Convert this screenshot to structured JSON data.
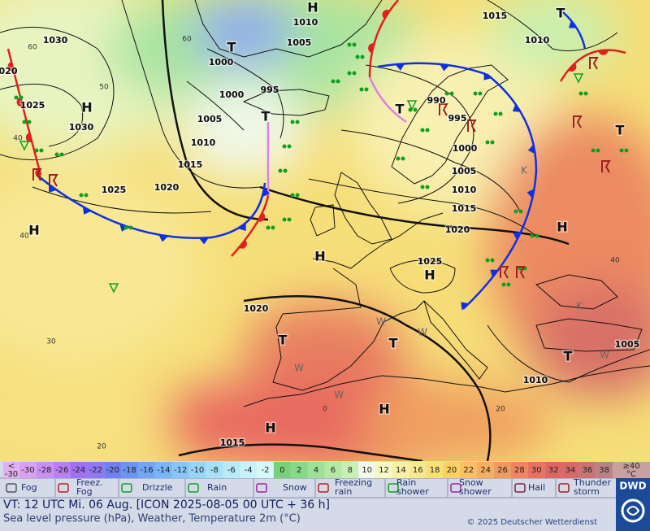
{
  "map": {
    "isobar_labels": [
      "1030",
      "1010",
      "1005",
      "1000",
      "1015",
      "1010",
      "020",
      "1025",
      "1030",
      "1000",
      "995",
      "1005",
      "1010",
      "1015",
      "1025",
      "1020",
      "990",
      "995",
      "1000",
      "1005",
      "1010",
      "1015",
      "1020",
      "1025",
      "1020",
      "1010",
      "1005",
      "1015"
    ],
    "pressure_centers": [
      "H",
      "H",
      "H",
      "H",
      "H",
      "H",
      "H",
      "H",
      "T",
      "T",
      "T",
      "T",
      "T",
      "T",
      "T",
      "T"
    ],
    "temperature_labels": [
      "60",
      "60",
      "50",
      "40",
      "40",
      "30",
      "20",
      "0",
      "20",
      "40"
    ],
    "airmass_labels": [
      "W",
      "W",
      "W",
      "W",
      "K",
      "K",
      "W"
    ]
  },
  "legend": {
    "scale_low": {
      "symbol": "<",
      "value": "-30"
    },
    "scale": [
      {
        "label": "-30",
        "color": "#d8a0f0"
      },
      {
        "label": "-28",
        "color": "#c890f0"
      },
      {
        "label": "-26",
        "color": "#b880f0"
      },
      {
        "label": "-24",
        "color": "#a070f0"
      },
      {
        "label": "-22",
        "color": "#9078f0"
      },
      {
        "label": "-20",
        "color": "#7080f0"
      },
      {
        "label": "-18",
        "color": "#6c94f0"
      },
      {
        "label": "-16",
        "color": "#70a6f4"
      },
      {
        "label": "-14",
        "color": "#78b6f8"
      },
      {
        "label": "-12",
        "color": "#88c6f8"
      },
      {
        "label": "-10",
        "color": "#98d4f8"
      },
      {
        "label": "-8",
        "color": "#a8e0f8"
      },
      {
        "label": "-6",
        "color": "#b8eaf8"
      },
      {
        "label": "-4",
        "color": "#c8f2f8"
      },
      {
        "label": "-2",
        "color": "#d8f8f8"
      },
      {
        "label": "0",
        "color": "#78d078"
      },
      {
        "label": "2",
        "color": "#88d888"
      },
      {
        "label": "4",
        "color": "#9ee09a"
      },
      {
        "label": "6",
        "color": "#b4e8a4"
      },
      {
        "label": "8",
        "color": "#c8f0b4"
      },
      {
        "label": "10",
        "color": "#f4f8e8"
      },
      {
        "label": "12",
        "color": "#f8f8c4"
      },
      {
        "label": "14",
        "color": "#f8f0a4"
      },
      {
        "label": "16",
        "color": "#f8e890"
      },
      {
        "label": "18",
        "color": "#f8e074"
      },
      {
        "label": "20",
        "color": "#f8d064"
      },
      {
        "label": "22",
        "color": "#f8c062"
      },
      {
        "label": "24",
        "color": "#f4b060"
      },
      {
        "label": "26",
        "color": "#f09a60"
      },
      {
        "label": "28",
        "color": "#ee8462"
      },
      {
        "label": "30",
        "color": "#e87262"
      },
      {
        "label": "32",
        "color": "#e06666"
      },
      {
        "label": "34",
        "color": "#d66a6a"
      },
      {
        "label": "36",
        "color": "#c87474"
      },
      {
        "label": "38",
        "color": "#ba8282"
      }
    ],
    "scale_high": {
      "symbol": "≥40",
      "unit": "°C"
    },
    "weather": [
      {
        "lines": [
          "Fog"
        ]
      },
      {
        "lines": [
          "Freez.",
          "Fog"
        ]
      },
      {
        "lines": [
          "Drizzle"
        ]
      },
      {
        "lines": [
          "Rain"
        ]
      },
      {
        "lines": [
          "Snow"
        ]
      },
      {
        "lines": [
          "Freezing",
          "rain"
        ]
      },
      {
        "lines": [
          "Rain",
          "shower"
        ]
      },
      {
        "lines": [
          "Snow",
          "shower"
        ]
      },
      {
        "lines": [
          "Hail"
        ]
      },
      {
        "lines": [
          "Thunder",
          "storm"
        ]
      }
    ]
  },
  "footer": {
    "valid_time": "VT: 12 UTC Mi.  06 Aug. [ICON 2025-08-05  00 UTC + 36 h]",
    "description": "Sea level pressure (hPa), Weather, Temperature 2m (°C)",
    "copyright": "© 2025 Deutscher Wetterdienst",
    "logo": "DWD"
  }
}
